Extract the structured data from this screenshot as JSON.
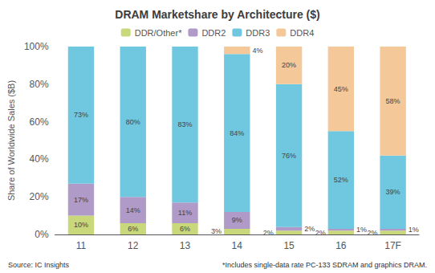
{
  "chart_data": {
    "type": "bar",
    "title": "DRAM Marketshare by Architecture ($)",
    "ylabel": "Share of Worldwide Sales ($B)",
    "categories": [
      "11",
      "12",
      "13",
      "14",
      "15",
      "16",
      "17F"
    ],
    "series": [
      {
        "name": "DDR/Other*",
        "color": "#c8d87a",
        "values": [
          10,
          6,
          6,
          3,
          2,
          2,
          2
        ],
        "value_labels": [
          "10%",
          "6%",
          "6%",
          "3%",
          "2%",
          "2%",
          "2%"
        ]
      },
      {
        "name": "DDR2",
        "color": "#b09ac8",
        "values": [
          17,
          14,
          11,
          9,
          2,
          1,
          1
        ],
        "value_labels": [
          "17%",
          "14%",
          "11%",
          "9%",
          "2%",
          "1%",
          "1%"
        ]
      },
      {
        "name": "DDR3",
        "color": "#70c8e0",
        "values": [
          73,
          80,
          83,
          84,
          76,
          52,
          39
        ],
        "value_labels": [
          "73%",
          "80%",
          "83%",
          "84%",
          "76%",
          "52%",
          "39%"
        ]
      },
      {
        "name": "DDR4",
        "color": "#f5c89a",
        "values": [
          0,
          0,
          0,
          4,
          20,
          45,
          58
        ],
        "value_labels": [
          null,
          null,
          null,
          "4%",
          "20%",
          "45%",
          "58%"
        ]
      }
    ],
    "ylim": [
      0,
      100
    ],
    "yticks": [
      {
        "value": 0,
        "label": "0%"
      },
      {
        "value": 20,
        "label": "20%"
      },
      {
        "value": 40,
        "label": "40%"
      },
      {
        "value": 60,
        "label": "60%"
      },
      {
        "value": 80,
        "label": "80%"
      },
      {
        "value": 100,
        "label": "100%"
      }
    ],
    "annotations": [
      "Source: IC Insights",
      "*Includes single-data rate PC-133 SDRAM and graphics DRAM."
    ],
    "stacked": true,
    "data_labels": true,
    "legend": "top",
    "grid": false
  }
}
